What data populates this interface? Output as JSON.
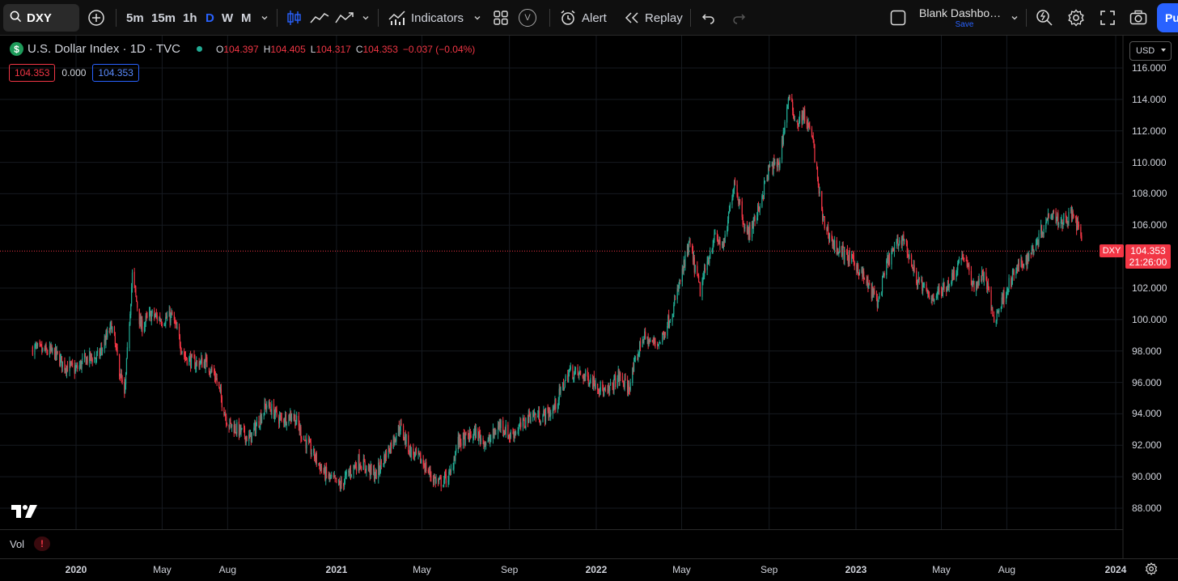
{
  "toolbar": {
    "symbol": "DXY",
    "timeframes": [
      {
        "label": "5m",
        "active": false
      },
      {
        "label": "15m",
        "active": false
      },
      {
        "label": "1h",
        "active": false
      },
      {
        "label": "D",
        "active": true
      },
      {
        "label": "W",
        "active": false
      },
      {
        "label": "M",
        "active": false
      }
    ],
    "indicators_label": "Indicators",
    "alert_label": "Alert",
    "replay_label": "Replay",
    "layout_name": "Blank Dashbo…",
    "save_label": "Save",
    "publish_label": "Pu",
    "v_label": "V"
  },
  "legend": {
    "title": "U.S. Dollar Index · 1D · TVC",
    "ohlc": [
      {
        "k": "O",
        "v": "104.397"
      },
      {
        "k": "H",
        "v": "104.405"
      },
      {
        "k": "L",
        "v": "104.317"
      },
      {
        "k": "C",
        "v": "104.353"
      }
    ],
    "change": "−0.037 (−0.04%)",
    "box_red": "104.353",
    "box_mid": "0.000",
    "box_blue": "104.353"
  },
  "currency": "USD",
  "price_badge": {
    "symbol": "DXY",
    "price": "104.353",
    "countdown": "21:26:00"
  },
  "vol_label": "Vol",
  "vol_warning": "!",
  "colors": {
    "up": "#22ab94",
    "down": "#f23645",
    "accent": "#2962ff",
    "bg": "#000000"
  },
  "chart_data": {
    "type": "candlestick",
    "price_axis_labels": [
      "116.000",
      "114.000",
      "112.000",
      "110.000",
      "108.000",
      "106.000",
      "102.000",
      "100.000",
      "98.000",
      "96.000",
      "94.000",
      "92.000",
      "90.000",
      "88.000"
    ],
    "price_axis_values": [
      116,
      114,
      112,
      110,
      108,
      106,
      102,
      100,
      98,
      96,
      94,
      92,
      90,
      88
    ],
    "time_labels": [
      {
        "label": "2020",
        "bold": true
      },
      {
        "label": "May",
        "bold": false
      },
      {
        "label": "Aug",
        "bold": false
      },
      {
        "label": "2021",
        "bold": true
      },
      {
        "label": "May",
        "bold": false
      },
      {
        "label": "Sep",
        "bold": false
      },
      {
        "label": "2022",
        "bold": true
      },
      {
        "label": "May",
        "bold": false
      },
      {
        "label": "Sep",
        "bold": false
      },
      {
        "label": "2023",
        "bold": true
      },
      {
        "label": "May",
        "bold": false
      },
      {
        "label": "Aug",
        "bold": false
      },
      {
        "label": "2024",
        "bold": true
      }
    ],
    "last_price": 104.353,
    "ylim": [
      86.5,
      116.5
    ],
    "close_path": [
      {
        "date": "2019-11-01",
        "close": 98.2
      },
      {
        "date": "2019-11-15",
        "close": 98.0
      },
      {
        "date": "2019-12-01",
        "close": 97.9
      },
      {
        "date": "2019-12-15",
        "close": 97.1
      },
      {
        "date": "2020-01-01",
        "close": 96.8
      },
      {
        "date": "2020-01-15",
        "close": 97.5
      },
      {
        "date": "2020-02-01",
        "close": 97.6
      },
      {
        "date": "2020-02-20",
        "close": 99.6
      },
      {
        "date": "2020-03-09",
        "close": 95.0
      },
      {
        "date": "2020-03-20",
        "close": 102.8
      },
      {
        "date": "2020-04-01",
        "close": 99.5
      },
      {
        "date": "2020-04-15",
        "close": 100.3
      },
      {
        "date": "2020-05-01",
        "close": 100.0
      },
      {
        "date": "2020-05-15",
        "close": 100.2
      },
      {
        "date": "2020-06-01",
        "close": 97.7
      },
      {
        "date": "2020-06-15",
        "close": 97.2
      },
      {
        "date": "2020-07-01",
        "close": 97.3
      },
      {
        "date": "2020-07-15",
        "close": 96.4
      },
      {
        "date": "2020-08-01",
        "close": 93.4
      },
      {
        "date": "2020-08-15",
        "close": 93.0
      },
      {
        "date": "2020-09-01",
        "close": 92.4
      },
      {
        "date": "2020-09-25",
        "close": 94.6
      },
      {
        "date": "2020-10-15",
        "close": 93.6
      },
      {
        "date": "2020-11-01",
        "close": 94.0
      },
      {
        "date": "2020-11-15",
        "close": 92.5
      },
      {
        "date": "2020-12-01",
        "close": 91.3
      },
      {
        "date": "2020-12-15",
        "close": 90.2
      },
      {
        "date": "2021-01-06",
        "close": 89.4
      },
      {
        "date": "2021-01-20",
        "close": 90.3
      },
      {
        "date": "2021-02-01",
        "close": 91.0
      },
      {
        "date": "2021-02-25",
        "close": 90.1
      },
      {
        "date": "2021-03-31",
        "close": 93.2
      },
      {
        "date": "2021-04-15",
        "close": 91.6
      },
      {
        "date": "2021-05-01",
        "close": 91.0
      },
      {
        "date": "2021-05-15",
        "close": 90.0
      },
      {
        "date": "2021-05-25",
        "close": 89.6
      },
      {
        "date": "2021-06-10",
        "close": 90.1
      },
      {
        "date": "2021-06-20",
        "close": 92.2
      },
      {
        "date": "2021-07-01",
        "close": 92.4
      },
      {
        "date": "2021-07-15",
        "close": 92.8
      },
      {
        "date": "2021-08-01",
        "close": 92.1
      },
      {
        "date": "2021-08-20",
        "close": 93.4
      },
      {
        "date": "2021-09-01",
        "close": 92.6
      },
      {
        "date": "2021-09-20",
        "close": 93.3
      },
      {
        "date": "2021-10-01",
        "close": 94.0
      },
      {
        "date": "2021-10-15",
        "close": 93.8
      },
      {
        "date": "2021-11-01",
        "close": 94.2
      },
      {
        "date": "2021-11-24",
        "close": 96.7
      },
      {
        "date": "2021-12-15",
        "close": 96.4
      },
      {
        "date": "2022-01-01",
        "close": 96.0
      },
      {
        "date": "2022-01-15",
        "close": 95.2
      },
      {
        "date": "2022-02-01",
        "close": 96.4
      },
      {
        "date": "2022-02-15",
        "close": 95.6
      },
      {
        "date": "2022-03-07",
        "close": 98.9
      },
      {
        "date": "2022-03-20",
        "close": 98.5
      },
      {
        "date": "2022-04-01",
        "close": 98.6
      },
      {
        "date": "2022-04-20",
        "close": 100.8
      },
      {
        "date": "2022-05-12",
        "close": 104.8
      },
      {
        "date": "2022-05-27",
        "close": 101.8
      },
      {
        "date": "2022-06-15",
        "close": 105.2
      },
      {
        "date": "2022-06-30",
        "close": 104.7
      },
      {
        "date": "2022-07-14",
        "close": 108.9
      },
      {
        "date": "2022-08-01",
        "close": 105.3
      },
      {
        "date": "2022-08-15",
        "close": 106.7
      },
      {
        "date": "2022-09-01",
        "close": 109.6
      },
      {
        "date": "2022-09-15",
        "close": 109.9
      },
      {
        "date": "2022-09-28",
        "close": 114.1
      },
      {
        "date": "2022-10-10",
        "close": 112.5
      },
      {
        "date": "2022-10-20",
        "close": 113.0
      },
      {
        "date": "2022-11-01",
        "close": 111.5
      },
      {
        "date": "2022-11-15",
        "close": 106.4
      },
      {
        "date": "2022-12-01",
        "close": 104.7
      },
      {
        "date": "2022-12-15",
        "close": 104.2
      },
      {
        "date": "2023-01-01",
        "close": 103.5
      },
      {
        "date": "2023-01-20",
        "close": 102.0
      },
      {
        "date": "2023-02-01",
        "close": 101.1
      },
      {
        "date": "2023-02-15",
        "close": 103.8
      },
      {
        "date": "2023-03-08",
        "close": 105.3
      },
      {
        "date": "2023-03-25",
        "close": 102.8
      },
      {
        "date": "2023-04-14",
        "close": 101.4
      },
      {
        "date": "2023-05-01",
        "close": 101.8
      },
      {
        "date": "2023-05-15",
        "close": 102.6
      },
      {
        "date": "2023-05-31",
        "close": 104.2
      },
      {
        "date": "2023-06-15",
        "close": 102.1
      },
      {
        "date": "2023-07-01",
        "close": 102.9
      },
      {
        "date": "2023-07-14",
        "close": 99.9
      },
      {
        "date": "2023-08-01",
        "close": 102.0
      },
      {
        "date": "2023-08-15",
        "close": 103.2
      },
      {
        "date": "2023-09-01",
        "close": 104.0
      },
      {
        "date": "2023-09-15",
        "close": 105.3
      },
      {
        "date": "2023-10-03",
        "close": 107.0
      },
      {
        "date": "2023-10-15",
        "close": 106.2
      },
      {
        "date": "2023-10-31",
        "close": 106.7
      },
      {
        "date": "2023-11-10",
        "close": 105.8
      },
      {
        "date": "2023-11-15",
        "close": 104.353
      }
    ]
  }
}
